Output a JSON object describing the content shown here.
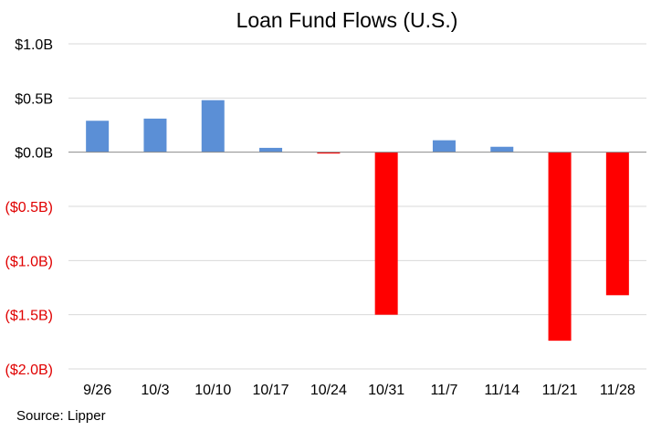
{
  "chart_data": {
    "type": "bar",
    "title": "Loan Fund Flows (U.S.)",
    "xlabel": "",
    "ylabel": "",
    "categories": [
      "9/26",
      "10/3",
      "10/10",
      "10/17",
      "10/24",
      "10/31",
      "11/7",
      "11/14",
      "11/21",
      "11/28"
    ],
    "values": [
      0.29,
      0.31,
      0.48,
      0.04,
      -0.01,
      -1.5,
      0.11,
      0.05,
      -1.74,
      -1.32
    ],
    "ylim": [
      -2.0,
      1.0
    ],
    "y_ticks": [
      {
        "value": 1.0,
        "label": "$1.0B"
      },
      {
        "value": 0.5,
        "label": "$0.5B"
      },
      {
        "value": 0.0,
        "label": "$0.0B"
      },
      {
        "value": -0.5,
        "label": "($0.5B)"
      },
      {
        "value": -1.0,
        "label": "($1.0B)"
      },
      {
        "value": -1.5,
        "label": "($1.5B)"
      },
      {
        "value": -2.0,
        "label": "($2.0B)"
      }
    ],
    "grid": true,
    "legend": "none",
    "colors": {
      "positive": "#5b8fd6",
      "negative": "#ff0000",
      "positive_tick_text": "#000000",
      "negative_tick_text": "#e00000",
      "gridline": "#d9d9d9",
      "zero_line": "#8c8c8c"
    }
  },
  "source_note": "Source: Lipper"
}
